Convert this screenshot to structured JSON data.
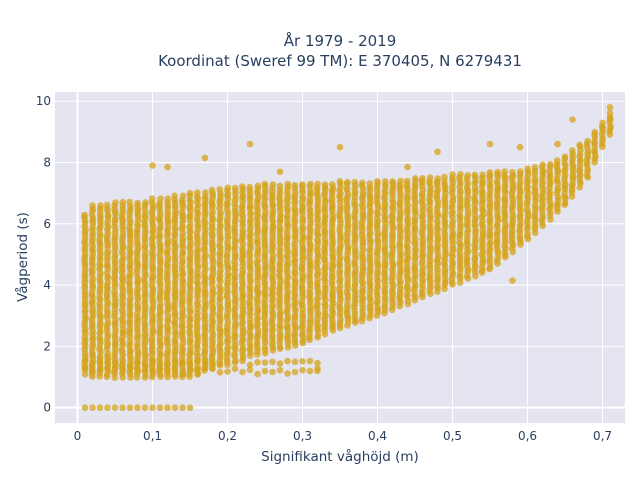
{
  "chart_data": {
    "type": "scatter",
    "title_lines": [
      "År 1979 - 2019",
      "Koordinat (Sweref 99 TM): E 370405, N 6279431"
    ],
    "xlabel": "Signifikant våghöjd (m)",
    "ylabel": "Vågperiod (s)",
    "xlim": [
      -0.03,
      0.73
    ],
    "ylim": [
      -0.5,
      10.3
    ],
    "xticks": [
      0,
      0.1,
      0.2,
      0.3,
      0.4,
      0.5,
      0.6,
      0.7
    ],
    "xtick_labels": [
      "0",
      "0,1",
      "0,2",
      "0,3",
      "0,4",
      "0,5",
      "0,6",
      "0,7"
    ],
    "yticks": [
      0,
      2,
      4,
      6,
      8,
      10
    ],
    "ytick_labels": [
      "0",
      "2",
      "4",
      "6",
      "8",
      "10"
    ],
    "grid": true,
    "legend": "none",
    "plot_background": "#e5e5f2",
    "marker_color": "#d4a319",
    "marker_opacity": 0.75,
    "x_step": 0.01,
    "band": {
      "x": [
        0.01,
        0.02,
        0.05,
        0.08,
        0.1,
        0.15,
        0.2,
        0.25,
        0.3,
        0.35,
        0.4,
        0.45,
        0.5,
        0.55,
        0.6,
        0.65,
        0.68,
        0.7,
        0.71
      ],
      "y_low": [
        1.1,
        1.0,
        1.0,
        1.0,
        1.0,
        1.0,
        1.5,
        1.8,
        2.1,
        2.6,
        3.0,
        3.5,
        4.0,
        4.5,
        5.5,
        6.6,
        7.5,
        8.5,
        8.9
      ],
      "y_high": [
        6.3,
        6.6,
        6.7,
        6.7,
        6.8,
        7.0,
        7.2,
        7.3,
        7.3,
        7.4,
        7.4,
        7.5,
        7.6,
        7.7,
        7.8,
        8.2,
        8.8,
        9.4,
        9.6
      ]
    },
    "low_row": {
      "y": 1.2,
      "x_start": 0.01,
      "x_end": 0.32
    },
    "zero_row": {
      "y": 0,
      "x": [
        0.01,
        0.02,
        0.03,
        0.04,
        0.05,
        0.06,
        0.07,
        0.08,
        0.09,
        0.1,
        0.11,
        0.12,
        0.13,
        0.14,
        0.15
      ]
    },
    "outliers": [
      {
        "x": 0.23,
        "y": 8.6
      },
      {
        "x": 0.17,
        "y": 8.15
      },
      {
        "x": 0.12,
        "y": 7.85
      },
      {
        "x": 0.35,
        "y": 8.5
      },
      {
        "x": 0.55,
        "y": 8.6
      },
      {
        "x": 0.48,
        "y": 8.35
      },
      {
        "x": 0.59,
        "y": 8.5
      },
      {
        "x": 0.64,
        "y": 8.6
      },
      {
        "x": 0.66,
        "y": 9.4
      },
      {
        "x": 0.71,
        "y": 9.8
      },
      {
        "x": 0.32,
        "y": 1.2
      },
      {
        "x": 0.58,
        "y": 4.15
      },
      {
        "x": 0.1,
        "y": 7.9
      },
      {
        "x": 0.27,
        "y": 7.7
      },
      {
        "x": 0.44,
        "y": 7.85
      }
    ]
  }
}
